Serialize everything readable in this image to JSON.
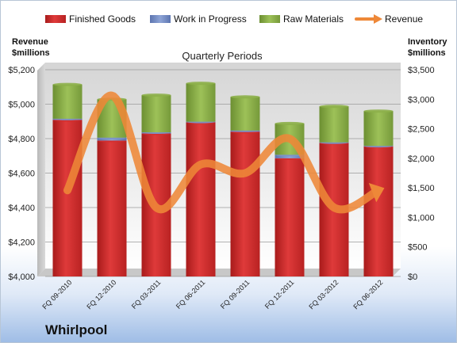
{
  "chart_data": {
    "type": "bar",
    "stacked": true,
    "title": "Quarterly Periods",
    "brand": "Whirlpool",
    "categories": [
      "FQ 09-2010",
      "FQ 12-2010",
      "FQ 03-2011",
      "FQ 06-2011",
      "FQ 09-2011",
      "FQ 12-2011",
      "FQ 03-2012",
      "FQ 06-2012"
    ],
    "left_axis": {
      "label_line1": "Revenue",
      "label_line2": "$millions",
      "range": [
        4000,
        5200
      ],
      "ticks": [
        "$4,000",
        "$4,200",
        "$4,400",
        "$4,600",
        "$4,800",
        "$5,000",
        "$5,200"
      ]
    },
    "right_axis": {
      "label_line1": "Inventory",
      "label_line2": "$millions",
      "range": [
        0,
        3500
      ],
      "ticks": [
        "$0",
        "$500",
        "$1,000",
        "$1,500",
        "$2,000",
        "$2,500",
        "$3,000",
        "$3,500"
      ]
    },
    "series": [
      {
        "name": "Finished Goods",
        "axis": "right",
        "color": "#d42d2d",
        "values": [
          2650,
          2300,
          2420,
          2610,
          2450,
          2000,
          2260,
          2200
        ]
      },
      {
        "name": "Work in Progress",
        "axis": "right",
        "color": "#7b93c7",
        "values": [
          20,
          50,
          20,
          10,
          20,
          60,
          10,
          10
        ]
      },
      {
        "name": "Raw Materials",
        "axis": "right",
        "color": "#8db04a",
        "values": [
          580,
          650,
          630,
          650,
          570,
          530,
          610,
          590
        ]
      },
      {
        "name": "Revenue",
        "axis": "left",
        "type": "line",
        "color": "#ee8838",
        "values": [
          4500,
          5050,
          4400,
          4650,
          4600,
          4800,
          4400,
          4500
        ]
      }
    ],
    "grid": true,
    "legend_position": "top"
  }
}
